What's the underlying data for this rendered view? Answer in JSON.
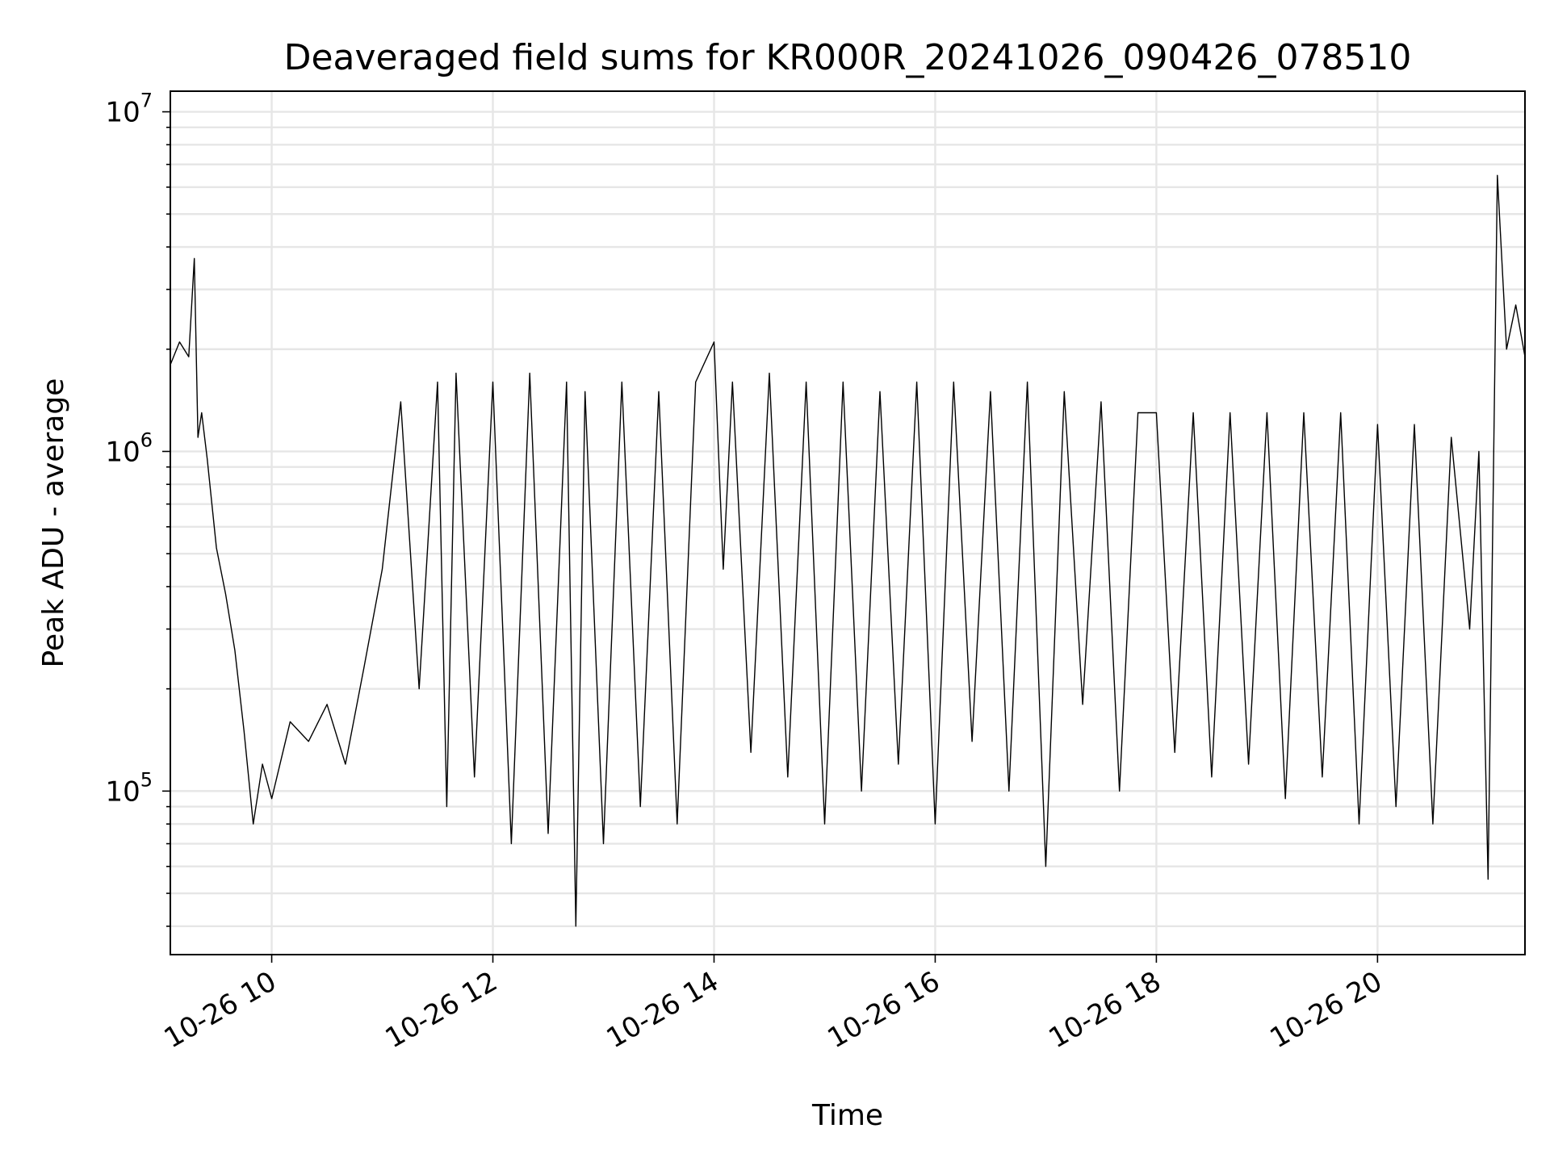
{
  "chart_data": {
    "type": "line",
    "title": "Deaveraged field sums for KR000R_20241026_090426_078510",
    "xlabel": "Time",
    "ylabel": "Peak ADU - average",
    "y_scale": "log",
    "ylim": [
      33000,
      11500000
    ],
    "xlim": [
      "2024-10-26 09:05",
      "2024-10-26 21:20"
    ],
    "grid": true,
    "x_ticks": [
      {
        "t": "2024-10-26 10:00",
        "label": "10-26 10"
      },
      {
        "t": "2024-10-26 12:00",
        "label": "10-26 12"
      },
      {
        "t": "2024-10-26 14:00",
        "label": "10-26 14"
      },
      {
        "t": "2024-10-26 16:00",
        "label": "10-26 16"
      },
      {
        "t": "2024-10-26 18:00",
        "label": "10-26 18"
      },
      {
        "t": "2024-10-26 20:00",
        "label": "10-26 20"
      }
    ],
    "y_ticks": [
      {
        "value": 100000,
        "base": "10",
        "exponent": "5"
      },
      {
        "value": 1000000,
        "base": "10",
        "exponent": "6"
      },
      {
        "value": 10000000,
        "base": "10",
        "exponent": "7"
      }
    ],
    "series": [
      {
        "color": "#000000",
        "x": [
          "2024-10-26 09:05",
          "2024-10-26 09:10",
          "2024-10-26 09:15",
          "2024-10-26 09:18",
          "2024-10-26 09:20",
          "2024-10-26 09:22",
          "2024-10-26 09:25",
          "2024-10-26 09:30",
          "2024-10-26 09:35",
          "2024-10-26 09:40",
          "2024-10-26 09:45",
          "2024-10-26 09:50",
          "2024-10-26 09:55",
          "2024-10-26 10:00",
          "2024-10-26 10:10",
          "2024-10-26 10:20",
          "2024-10-26 10:30",
          "2024-10-26 10:40",
          "2024-10-26 10:50",
          "2024-10-26 11:00",
          "2024-10-26 11:10",
          "2024-10-26 11:20",
          "2024-10-26 11:30",
          "2024-10-26 11:35",
          "2024-10-26 11:40",
          "2024-10-26 11:50",
          "2024-10-26 12:00",
          "2024-10-26 12:10",
          "2024-10-26 12:20",
          "2024-10-26 12:30",
          "2024-10-26 12:40",
          "2024-10-26 12:45",
          "2024-10-26 12:50",
          "2024-10-26 13:00",
          "2024-10-26 13:10",
          "2024-10-26 13:20",
          "2024-10-26 13:30",
          "2024-10-26 13:40",
          "2024-10-26 13:50",
          "2024-10-26 14:00",
          "2024-10-26 14:05",
          "2024-10-26 14:10",
          "2024-10-26 14:20",
          "2024-10-26 14:30",
          "2024-10-26 14:40",
          "2024-10-26 14:50",
          "2024-10-26 15:00",
          "2024-10-26 15:10",
          "2024-10-26 15:20",
          "2024-10-26 15:30",
          "2024-10-26 15:40",
          "2024-10-26 15:50",
          "2024-10-26 16:00",
          "2024-10-26 16:10",
          "2024-10-26 16:20",
          "2024-10-26 16:30",
          "2024-10-26 16:40",
          "2024-10-26 16:50",
          "2024-10-26 17:00",
          "2024-10-26 17:10",
          "2024-10-26 17:20",
          "2024-10-26 17:30",
          "2024-10-26 17:40",
          "2024-10-26 17:50",
          "2024-10-26 18:00",
          "2024-10-26 18:10",
          "2024-10-26 18:20",
          "2024-10-26 18:30",
          "2024-10-26 18:40",
          "2024-10-26 18:50",
          "2024-10-26 19:00",
          "2024-10-26 19:10",
          "2024-10-26 19:20",
          "2024-10-26 19:30",
          "2024-10-26 19:40",
          "2024-10-26 19:50",
          "2024-10-26 20:00",
          "2024-10-26 20:10",
          "2024-10-26 20:20",
          "2024-10-26 20:30",
          "2024-10-26 20:40",
          "2024-10-26 20:50",
          "2024-10-26 20:55",
          "2024-10-26 21:00",
          "2024-10-26 21:05",
          "2024-10-26 21:10",
          "2024-10-26 21:15",
          "2024-10-26 21:20"
        ],
        "y": [
          1800000,
          2100000,
          1900000,
          3700000,
          1100000,
          1300000,
          950000,
          520000,
          380000,
          260000,
          150000,
          80000,
          120000,
          95000,
          160000,
          140000,
          180000,
          120000,
          230000,
          450000,
          1400000,
          200000,
          1600000,
          90000,
          1700000,
          110000,
          1600000,
          70000,
          1700000,
          75000,
          1600000,
          40000,
          1500000,
          70000,
          1600000,
          90000,
          1500000,
          80000,
          1600000,
          2100000,
          450000,
          1600000,
          130000,
          1700000,
          110000,
          1600000,
          80000,
          1600000,
          100000,
          1500000,
          120000,
          1600000,
          80000,
          1600000,
          140000,
          1500000,
          100000,
          1600000,
          60000,
          1500000,
          180000,
          1400000,
          100000,
          1300000,
          1300000,
          130000,
          1300000,
          110000,
          1300000,
          120000,
          1300000,
          95000,
          1300000,
          110000,
          1300000,
          80000,
          1200000,
          90000,
          1200000,
          80000,
          1100000,
          300000,
          1000000,
          55000,
          6500000,
          2000000,
          2700000,
          1900000
        ]
      }
    ]
  }
}
